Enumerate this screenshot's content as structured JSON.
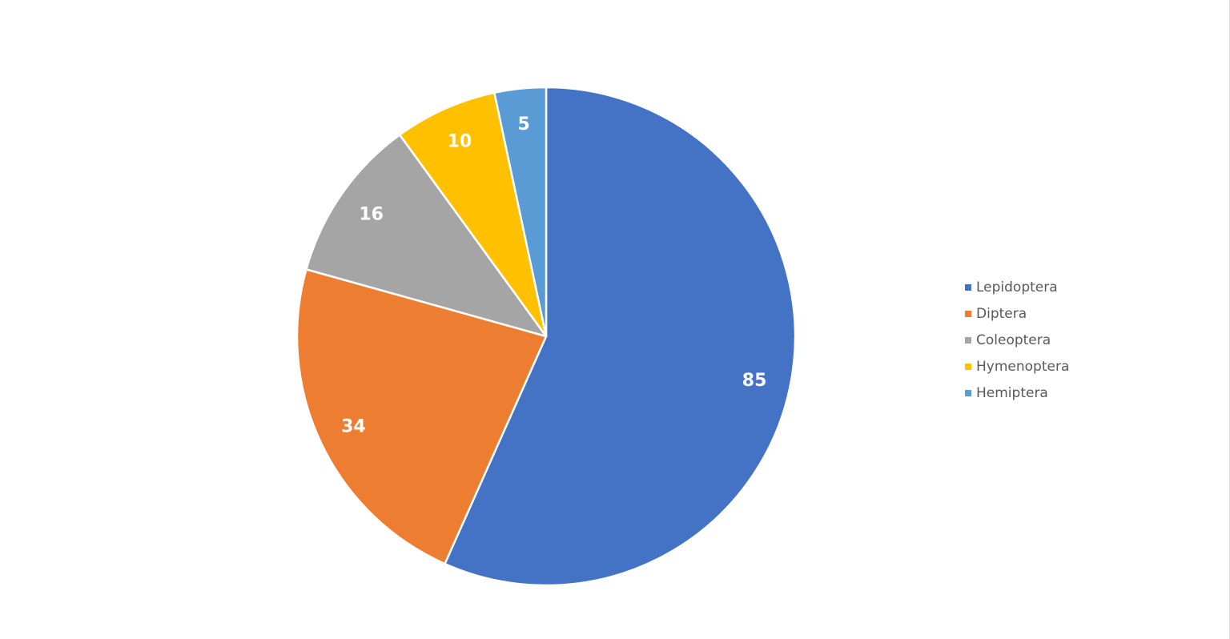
{
  "chart_data": {
    "type": "pie",
    "title": "",
    "categories": [
      "Lepidoptera",
      "Diptera",
      "Coleoptera",
      "Hymenoptera",
      "Hemiptera"
    ],
    "values": [
      85,
      34,
      16,
      10,
      5
    ],
    "colors": [
      "#4472C4",
      "#ED7D31",
      "#A5A5A5",
      "#FFC000",
      "#5B9BD5"
    ],
    "data_labels_shown": true,
    "legend_position": "right",
    "start_angle_deg": 0,
    "direction": "clockwise"
  }
}
